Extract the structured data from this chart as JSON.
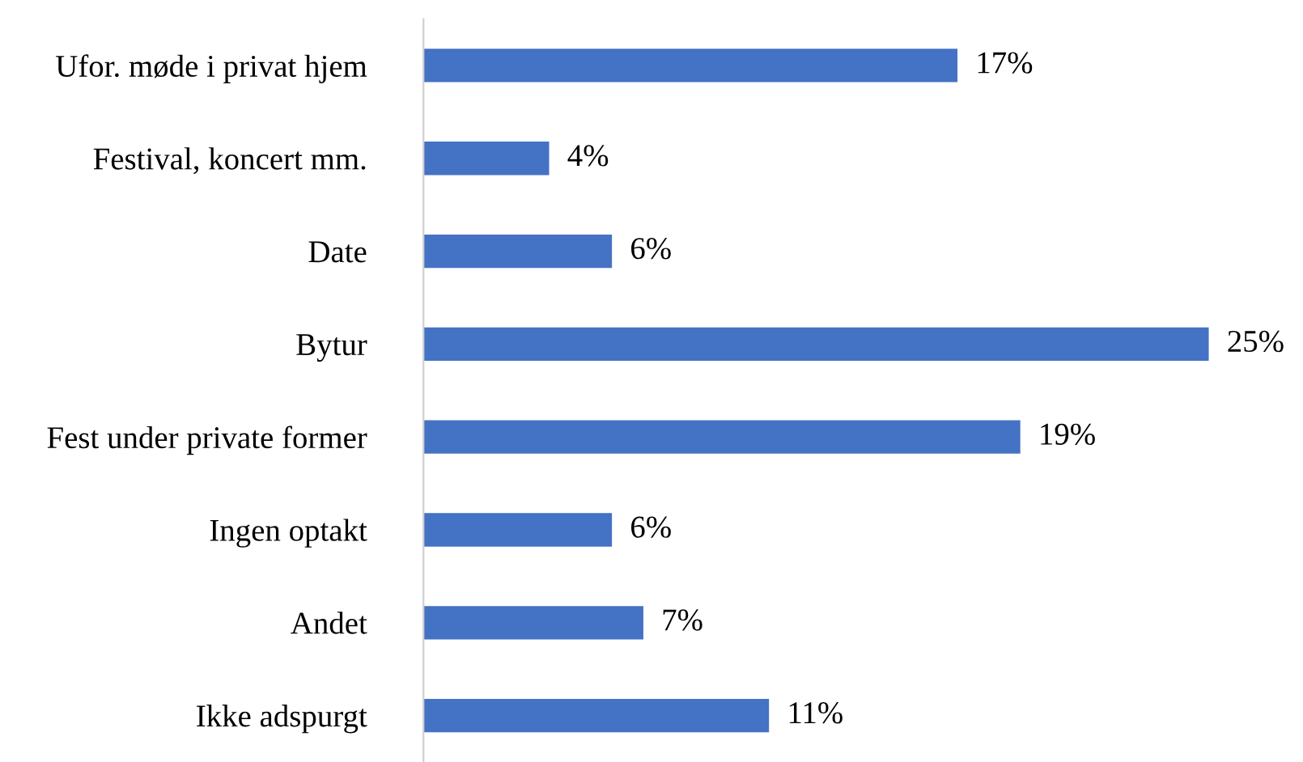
{
  "chart_data": {
    "type": "bar",
    "orientation": "horizontal",
    "categories": [
      "Ufor. møde i privat hjem",
      "Festival, koncert mm.",
      "Date",
      "Bytur",
      "Fest under private former",
      "Ingen optakt",
      "Andet",
      "Ikke adspurgt"
    ],
    "values": [
      17,
      4,
      6,
      25,
      19,
      6,
      7,
      11
    ],
    "value_labels": [
      "17%",
      "4%",
      "6%",
      "25%",
      "19%",
      "6%",
      "7%",
      "11%"
    ],
    "color": "#4472c4",
    "grid": false,
    "legend": false
  }
}
